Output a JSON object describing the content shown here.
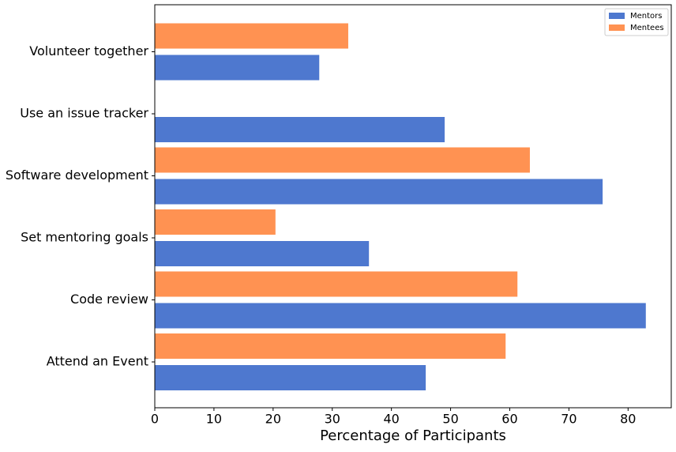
{
  "chart_data": {
    "type": "barh",
    "categories": [
      "Attend an Event",
      "Code review",
      "Set mentoring goals",
      "Software development",
      "Use an issue tracker",
      "Volunteer together"
    ],
    "series": [
      {
        "name": "Mentors",
        "color": "#4e78cf",
        "values": [
          45.8,
          83.0,
          36.2,
          75.7,
          49.0,
          27.8
        ]
      },
      {
        "name": "Mentees",
        "color": "#ff9252",
        "values": [
          59.3,
          61.3,
          20.4,
          63.4,
          null,
          32.7
        ]
      }
    ],
    "x_label": "Percentage of Participants",
    "xlim": [
      0,
      87.3
    ],
    "xticks": [
      0,
      10,
      20,
      30,
      40,
      50,
      60,
      70,
      80
    ],
    "legend": "upper right"
  }
}
